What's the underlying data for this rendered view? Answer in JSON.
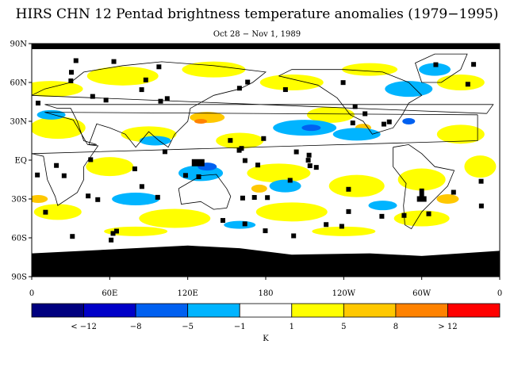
{
  "title": "HIRS CHN 12 Pentad brightness temperature anomalies (1979−1995)",
  "subtitle": "Oct 28 − Nov 1, 1989",
  "lat_ticks": [
    "90N",
    "60N",
    "30N",
    "EQ",
    "30S",
    "60S",
    "90S"
  ],
  "lon_ticks": [
    "0",
    "60E",
    "120E",
    "180",
    "120W",
    "60W",
    "0"
  ],
  "colorbar": {
    "colors": [
      "#00007f",
      "#0000c8",
      "#0060f0",
      "#00b4ff",
      "#ffffff",
      "#ffff00",
      "#ffc800",
      "#ff8200",
      "#ff0000"
    ],
    "labels": [
      "< −12",
      "−8",
      "−5",
      "−1",
      "1",
      "5",
      "8",
      "> 12"
    ],
    "unit": "K"
  },
  "missing_color": "#000000"
}
